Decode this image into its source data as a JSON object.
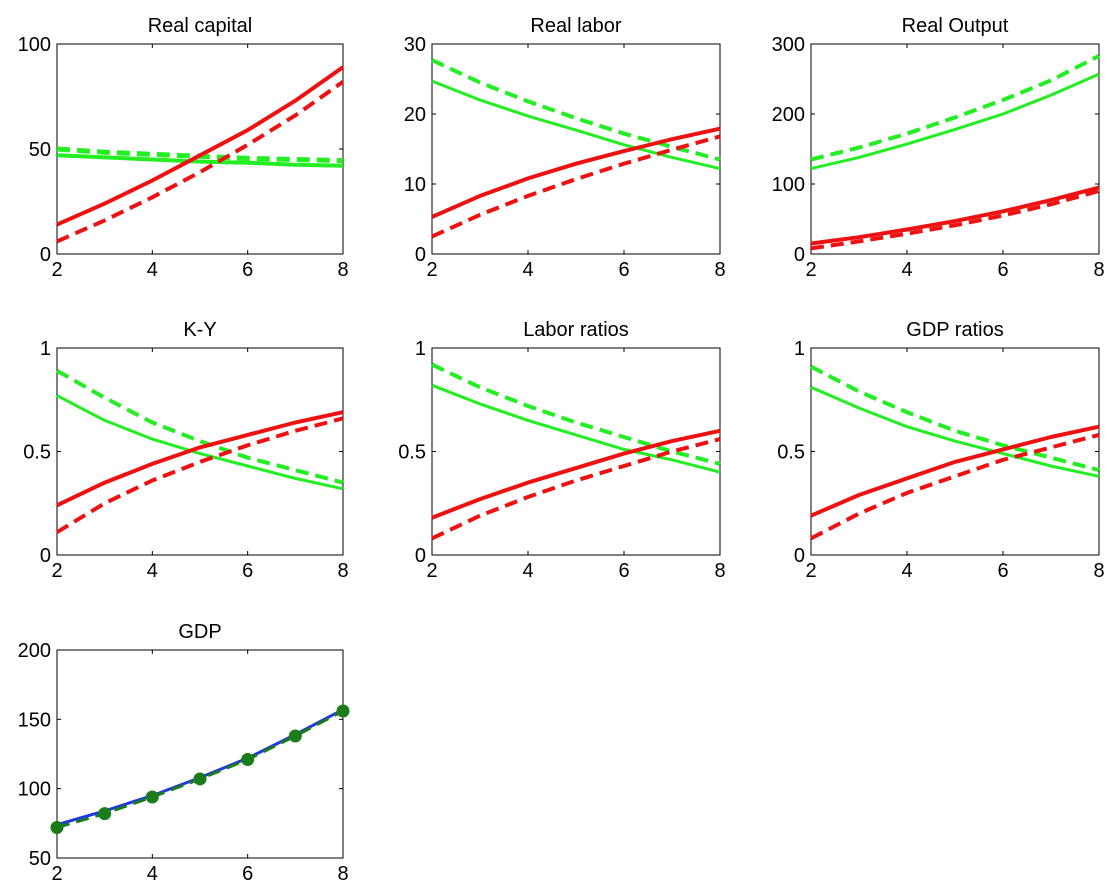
{
  "colors": {
    "green": "#22ee22",
    "red": "#ee1111",
    "blue": "#1f35e6",
    "dark_green": "#1a7d1a"
  },
  "chart_data": [
    {
      "type": "line",
      "title": "Real capital",
      "xlim": [
        2,
        8
      ],
      "ylim": [
        0,
        100
      ],
      "xticks": [
        2,
        4,
        6,
        8
      ],
      "yticks": [
        0,
        50,
        100
      ],
      "grid": false,
      "series": [
        {
          "color": "green",
          "style": "solid",
          "width": 4,
          "x": [
            2,
            3,
            4,
            5,
            6,
            7,
            8
          ],
          "y": [
            47,
            46,
            45,
            44,
            43.5,
            42.5,
            42
          ]
        },
        {
          "color": "green",
          "style": "dashed",
          "width": 5,
          "x": [
            2,
            3,
            4,
            5,
            6,
            7,
            8
          ],
          "y": [
            50,
            48.5,
            47.5,
            46.5,
            45.5,
            45,
            44.5
          ]
        },
        {
          "color": "red",
          "style": "solid",
          "width": 4,
          "x": [
            2,
            3,
            4,
            5,
            6,
            7,
            8
          ],
          "y": [
            14,
            24,
            35,
            47,
            59,
            73,
            89
          ]
        },
        {
          "color": "red",
          "style": "dashed",
          "width": 4,
          "x": [
            2,
            3,
            4,
            5,
            6,
            7,
            8
          ],
          "y": [
            6,
            16,
            27,
            39,
            52,
            66,
            82
          ]
        }
      ]
    },
    {
      "type": "line",
      "title": "Real labor",
      "xlim": [
        2,
        8
      ],
      "ylim": [
        0,
        30
      ],
      "xticks": [
        2,
        4,
        6,
        8
      ],
      "yticks": [
        0,
        10,
        20,
        30
      ],
      "grid": false,
      "series": [
        {
          "color": "green",
          "style": "solid",
          "width": 3,
          "x": [
            2,
            3,
            4,
            5,
            6,
            7,
            8
          ],
          "y": [
            24.7,
            22,
            19.7,
            17.7,
            15.6,
            13.8,
            12.2
          ]
        },
        {
          "color": "green",
          "style": "dashed",
          "width": 4,
          "x": [
            2,
            3,
            4,
            5,
            6,
            7,
            8
          ],
          "y": [
            27.7,
            24.5,
            21.8,
            19.4,
            17.2,
            15.3,
            13.5
          ]
        },
        {
          "color": "red",
          "style": "solid",
          "width": 4,
          "x": [
            2,
            3,
            4,
            5,
            6,
            7,
            8
          ],
          "y": [
            5.3,
            8.3,
            10.8,
            12.9,
            14.7,
            16.4,
            17.9
          ]
        },
        {
          "color": "red",
          "style": "dashed",
          "width": 4,
          "x": [
            2,
            3,
            4,
            5,
            6,
            7,
            8
          ],
          "y": [
            2.5,
            5.6,
            8.3,
            10.7,
            12.9,
            14.9,
            16.8
          ]
        }
      ]
    },
    {
      "type": "line",
      "title": "Real Output",
      "xlim": [
        2,
        8
      ],
      "ylim": [
        0,
        300
      ],
      "xticks": [
        2,
        4,
        6,
        8
      ],
      "yticks": [
        0,
        100,
        200,
        300
      ],
      "grid": false,
      "series": [
        {
          "color": "green",
          "style": "solid",
          "width": 3,
          "x": [
            2,
            3,
            4,
            5,
            6,
            7,
            8
          ],
          "y": [
            122,
            138,
            157,
            178,
            200,
            227,
            257
          ]
        },
        {
          "color": "green",
          "style": "dashed",
          "width": 4,
          "x": [
            2,
            3,
            4,
            5,
            6,
            7,
            8
          ],
          "y": [
            135,
            152,
            172,
            195,
            220,
            248,
            283
          ]
        },
        {
          "color": "red",
          "style": "solid",
          "width": 4,
          "x": [
            2,
            3,
            4,
            5,
            6,
            7,
            8
          ],
          "y": [
            15,
            24,
            35,
            47,
            61,
            77,
            95
          ]
        },
        {
          "color": "red",
          "style": "dashed",
          "width": 4,
          "x": [
            2,
            3,
            4,
            5,
            6,
            7,
            8
          ],
          "y": [
            8,
            18,
            29,
            41,
            55,
            71,
            90
          ]
        }
      ]
    },
    {
      "type": "line",
      "title": "K-Y",
      "xlim": [
        2,
        8
      ],
      "ylim": [
        0,
        1
      ],
      "xticks": [
        2,
        4,
        6,
        8
      ],
      "yticks": [
        0,
        0.5,
        1
      ],
      "ytick_labels": [
        "0",
        "0.5",
        "1"
      ],
      "grid": false,
      "series": [
        {
          "color": "green",
          "style": "solid",
          "width": 3,
          "x": [
            2,
            3,
            4,
            5,
            6,
            7,
            8
          ],
          "y": [
            0.77,
            0.65,
            0.56,
            0.49,
            0.43,
            0.37,
            0.32
          ]
        },
        {
          "color": "green",
          "style": "dashed",
          "width": 4,
          "x": [
            2,
            3,
            4,
            5,
            6,
            7,
            8
          ],
          "y": [
            0.89,
            0.76,
            0.64,
            0.55,
            0.47,
            0.41,
            0.35
          ]
        },
        {
          "color": "red",
          "style": "solid",
          "width": 4,
          "x": [
            2,
            3,
            4,
            5,
            6,
            7,
            8
          ],
          "y": [
            0.24,
            0.35,
            0.44,
            0.52,
            0.58,
            0.64,
            0.69
          ]
        },
        {
          "color": "red",
          "style": "dashed",
          "width": 4,
          "x": [
            2,
            3,
            4,
            5,
            6,
            7,
            8
          ],
          "y": [
            0.11,
            0.25,
            0.36,
            0.45,
            0.53,
            0.6,
            0.66
          ]
        }
      ]
    },
    {
      "type": "line",
      "title": "Labor ratios",
      "xlim": [
        2,
        8
      ],
      "ylim": [
        0,
        1
      ],
      "xticks": [
        2,
        4,
        6,
        8
      ],
      "yticks": [
        0,
        0.5,
        1
      ],
      "ytick_labels": [
        "0",
        "0.5",
        "1"
      ],
      "grid": false,
      "series": [
        {
          "color": "green",
          "style": "solid",
          "width": 3,
          "x": [
            2,
            3,
            4,
            5,
            6,
            7,
            8
          ],
          "y": [
            0.82,
            0.73,
            0.65,
            0.58,
            0.51,
            0.46,
            0.4
          ]
        },
        {
          "color": "green",
          "style": "dashed",
          "width": 4,
          "x": [
            2,
            3,
            4,
            5,
            6,
            7,
            8
          ],
          "y": [
            0.92,
            0.81,
            0.72,
            0.64,
            0.57,
            0.5,
            0.44
          ]
        },
        {
          "color": "red",
          "style": "solid",
          "width": 4,
          "x": [
            2,
            3,
            4,
            5,
            6,
            7,
            8
          ],
          "y": [
            0.18,
            0.27,
            0.35,
            0.42,
            0.49,
            0.55,
            0.6
          ]
        },
        {
          "color": "red",
          "style": "dashed",
          "width": 4,
          "x": [
            2,
            3,
            4,
            5,
            6,
            7,
            8
          ],
          "y": [
            0.08,
            0.19,
            0.28,
            0.36,
            0.43,
            0.5,
            0.56
          ]
        }
      ]
    },
    {
      "type": "line",
      "title": "GDP ratios",
      "xlim": [
        2,
        8
      ],
      "ylim": [
        0,
        1
      ],
      "xticks": [
        2,
        4,
        6,
        8
      ],
      "yticks": [
        0,
        0.5,
        1
      ],
      "ytick_labels": [
        "0",
        "0.5",
        "1"
      ],
      "grid": false,
      "series": [
        {
          "color": "green",
          "style": "solid",
          "width": 3,
          "x": [
            2,
            3,
            4,
            5,
            6,
            7,
            8
          ],
          "y": [
            0.81,
            0.71,
            0.62,
            0.55,
            0.49,
            0.43,
            0.38
          ]
        },
        {
          "color": "green",
          "style": "dashed",
          "width": 4,
          "x": [
            2,
            3,
            4,
            5,
            6,
            7,
            8
          ],
          "y": [
            0.91,
            0.79,
            0.69,
            0.6,
            0.53,
            0.47,
            0.41
          ]
        },
        {
          "color": "red",
          "style": "solid",
          "width": 4,
          "x": [
            2,
            3,
            4,
            5,
            6,
            7,
            8
          ],
          "y": [
            0.19,
            0.29,
            0.37,
            0.45,
            0.51,
            0.57,
            0.62
          ]
        },
        {
          "color": "red",
          "style": "dashed",
          "width": 4,
          "x": [
            2,
            3,
            4,
            5,
            6,
            7,
            8
          ],
          "y": [
            0.08,
            0.2,
            0.3,
            0.38,
            0.46,
            0.52,
            0.58
          ]
        }
      ]
    },
    {
      "type": "line",
      "title": "GDP",
      "xlim": [
        2,
        8
      ],
      "ylim": [
        50,
        200
      ],
      "xticks": [
        2,
        4,
        6,
        8
      ],
      "yticks": [
        50,
        100,
        150,
        200
      ],
      "grid": false,
      "series": [
        {
          "color": "blue",
          "style": "solid",
          "width": 3,
          "x": [
            2,
            3,
            4,
            5,
            6,
            7,
            8
          ],
          "y": [
            74,
            84,
            95,
            108,
            122,
            139,
            157
          ]
        },
        {
          "color": "dark_green",
          "style": "dashed",
          "width": 3,
          "markers": true,
          "x": [
            2,
            3,
            4,
            5,
            6,
            7,
            8
          ],
          "y": [
            72,
            82,
            94,
            107,
            121,
            138,
            156
          ]
        }
      ]
    }
  ]
}
